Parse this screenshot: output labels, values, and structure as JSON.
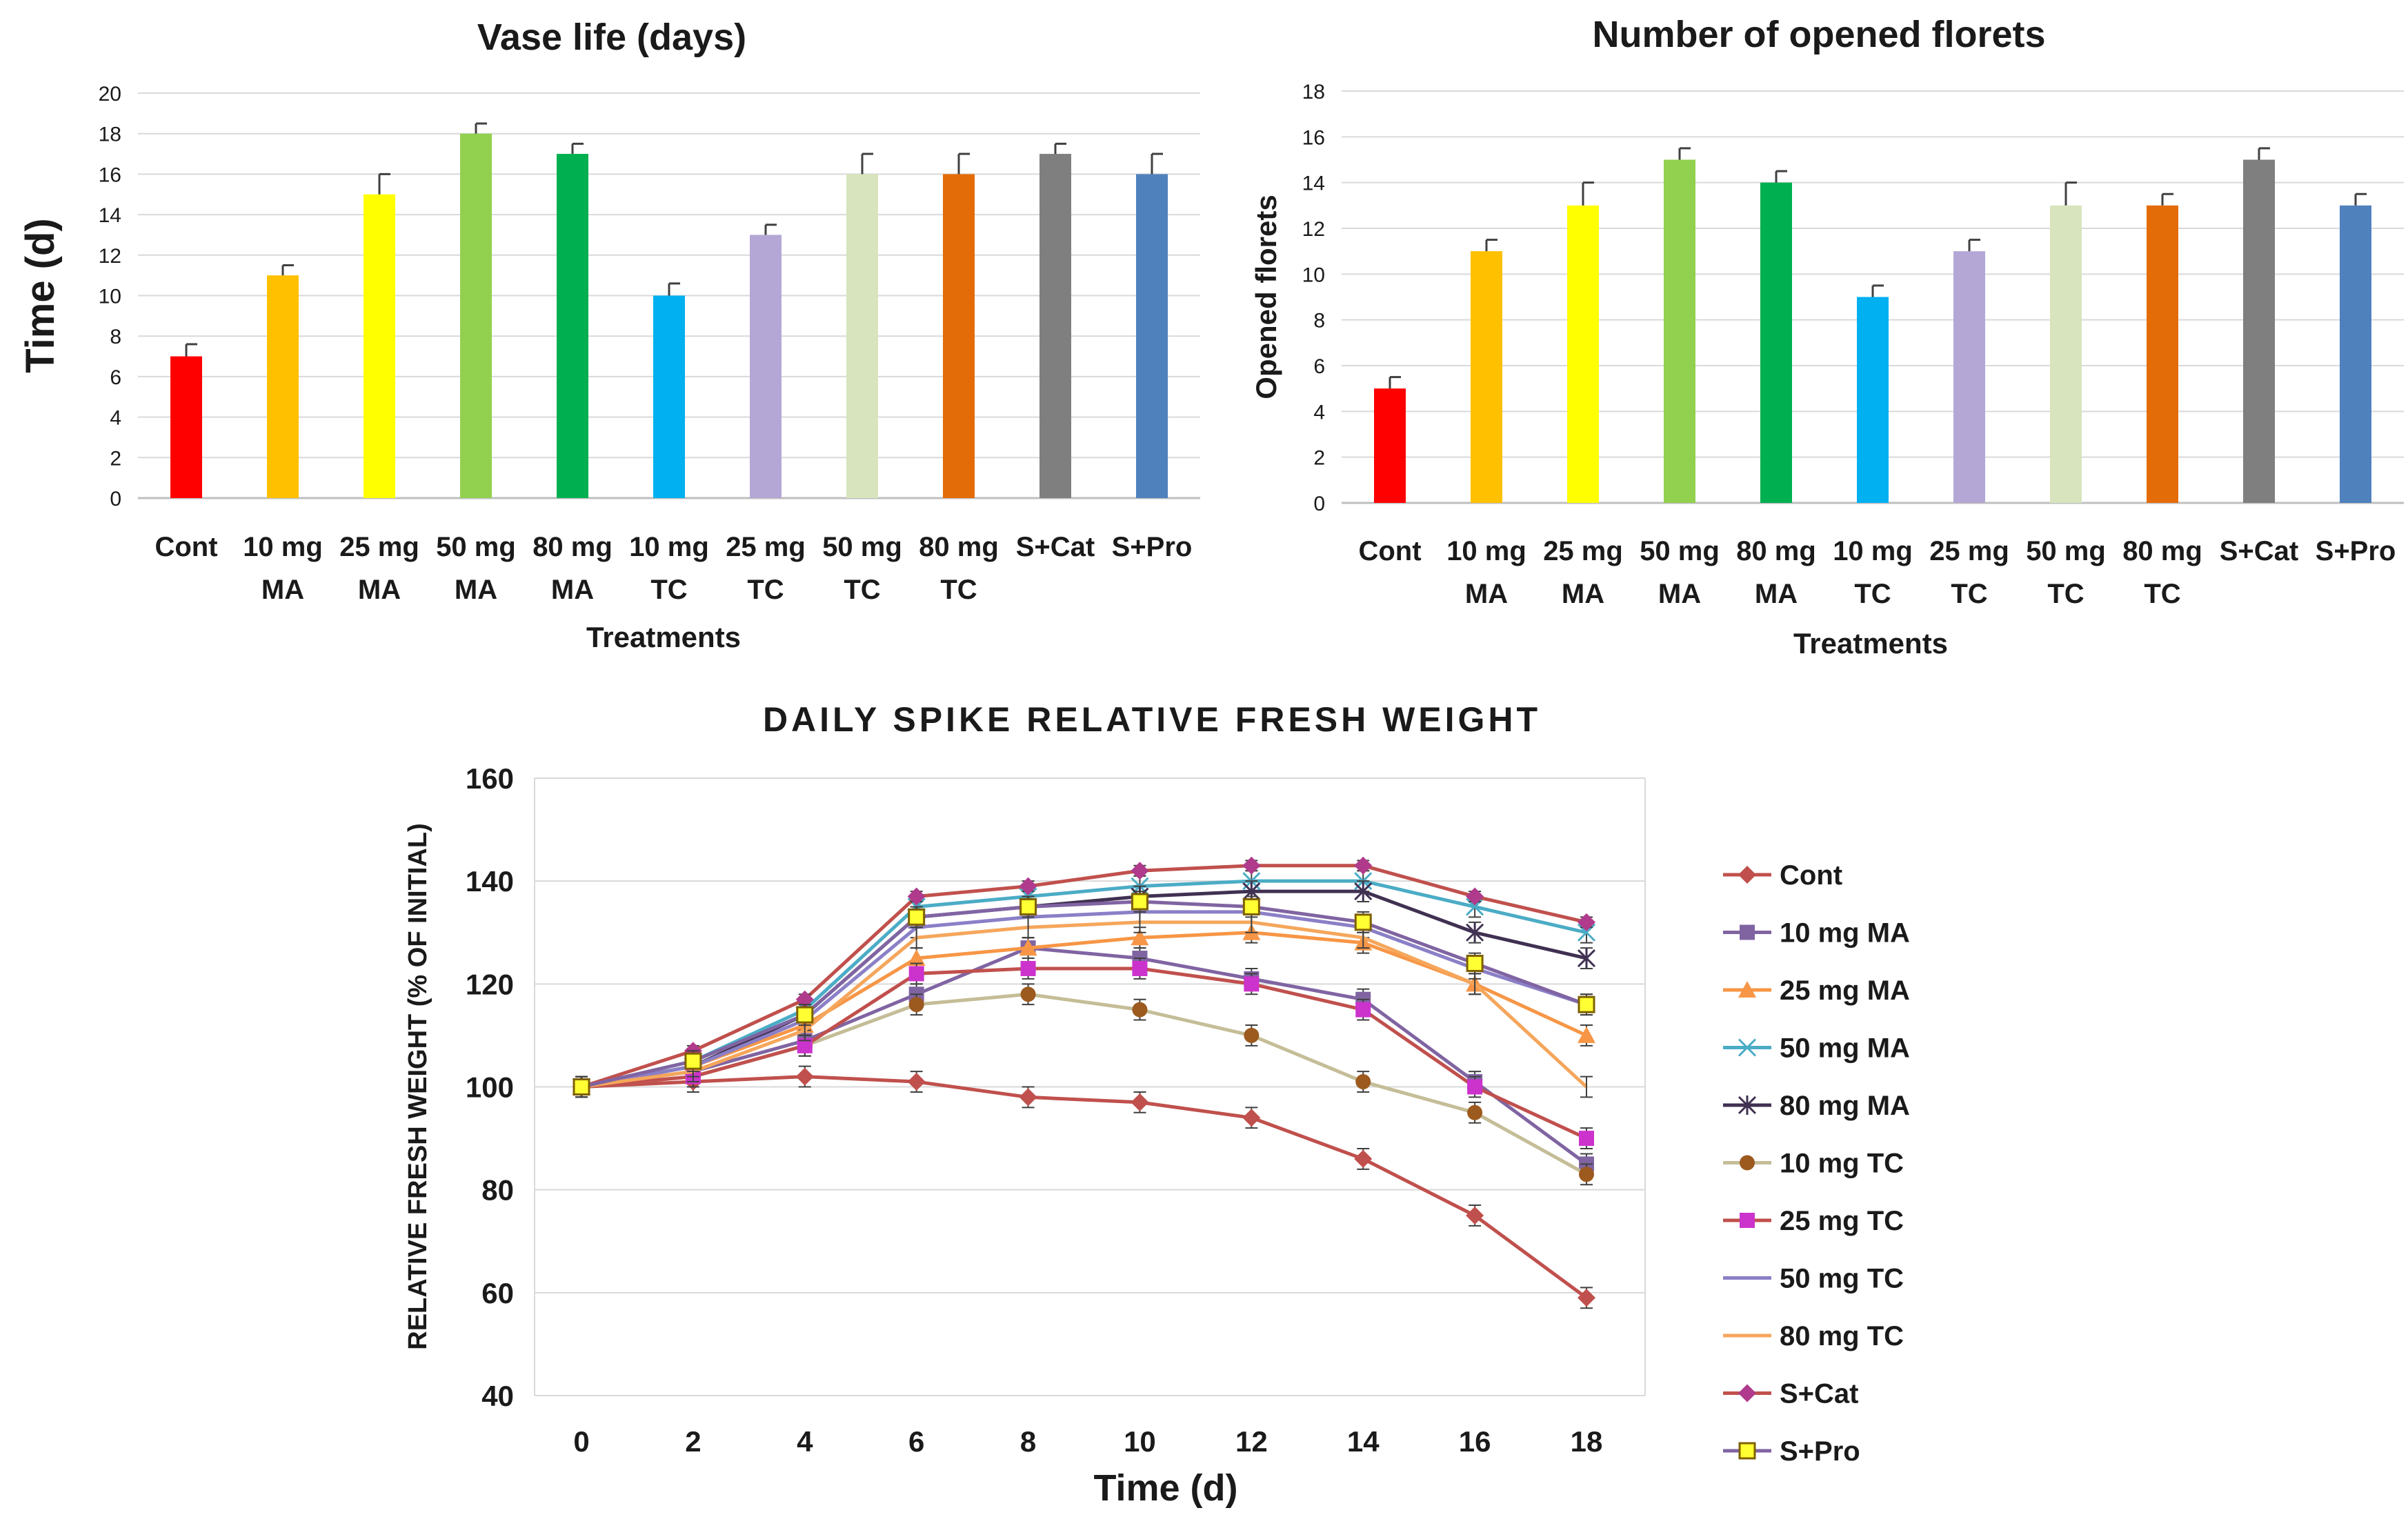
{
  "chart_data": [
    {
      "type": "bar",
      "title": "Vase life (days)",
      "xlabel": "Treatments",
      "ylabel": "Time (d)",
      "ylim": [
        0,
        20
      ],
      "yticks": [
        0,
        2,
        4,
        6,
        8,
        10,
        12,
        14,
        16,
        18,
        20
      ],
      "grid": true,
      "categories": [
        [
          "Cont"
        ],
        [
          "10 mg",
          "MA"
        ],
        [
          "25 mg",
          "MA"
        ],
        [
          "50 mg",
          "MA"
        ],
        [
          "80 mg",
          "MA"
        ],
        [
          "10 mg",
          "TC"
        ],
        [
          "25 mg",
          "TC"
        ],
        [
          "50 mg",
          "TC"
        ],
        [
          "80 mg",
          "TC"
        ],
        [
          "S+Cat"
        ],
        [
          "S+Pro"
        ]
      ],
      "values": [
        7,
        11,
        15,
        18,
        17,
        10,
        13,
        16,
        16,
        17,
        16
      ],
      "errors": [
        0.6,
        0.5,
        1.0,
        0.5,
        0.5,
        0.6,
        0.5,
        1.0,
        1.0,
        0.5,
        1.0
      ],
      "colors": [
        "#ff0000",
        "#ffc000",
        "#ffff00",
        "#92d050",
        "#00b050",
        "#00b0f0",
        "#b4a7d6",
        "#d7e4bd",
        "#e36c09",
        "#7f7f7f",
        "#4f81bd"
      ]
    },
    {
      "type": "bar",
      "title": "Number of opened florets",
      "xlabel": "Treatments",
      "ylabel": "Opened florets",
      "ylim": [
        0,
        18
      ],
      "yticks": [
        0,
        2,
        4,
        6,
        8,
        10,
        12,
        14,
        16,
        18
      ],
      "grid": true,
      "categories": [
        [
          "Cont"
        ],
        [
          "10 mg",
          "MA"
        ],
        [
          "25 mg",
          "MA"
        ],
        [
          "50 mg",
          "MA"
        ],
        [
          "80 mg",
          "MA"
        ],
        [
          "10 mg",
          "TC"
        ],
        [
          "25 mg",
          "TC"
        ],
        [
          "50 mg",
          "TC"
        ],
        [
          "80 mg",
          "TC"
        ],
        [
          "S+Cat"
        ],
        [
          "S+Pro"
        ]
      ],
      "values": [
        5,
        11,
        13,
        15,
        14,
        9,
        11,
        13,
        13,
        15,
        13
      ],
      "errors": [
        0.5,
        0.5,
        1.0,
        0.5,
        0.5,
        0.5,
        0.5,
        1.0,
        0.5,
        0.5,
        0.5
      ],
      "colors": [
        "#ff0000",
        "#ffc000",
        "#ffff00",
        "#92d050",
        "#00b050",
        "#00b0f0",
        "#b4a7d6",
        "#d7e4bd",
        "#e36c09",
        "#7f7f7f",
        "#4f81bd"
      ]
    },
    {
      "type": "line",
      "title": "DAILY SPIKE RELATIVE FRESH WEIGHT",
      "xlabel": "Time (d)",
      "ylabel": "RELATIVE FRESH WEIGHT (% OF INITIAL)",
      "ylim": [
        40,
        160
      ],
      "yticks": [
        40,
        60,
        80,
        100,
        120,
        140,
        160
      ],
      "x": [
        0,
        2,
        4,
        6,
        8,
        10,
        12,
        14,
        16,
        18
      ],
      "grid": true,
      "legend_position": "right",
      "series": [
        {
          "name": "Cont",
          "color": "#c0504d",
          "marker": "diamond",
          "values": [
            100,
            101,
            102,
            101,
            98,
            97,
            94,
            86,
            75,
            59
          ],
          "error": 2
        },
        {
          "name": "10 mg MA",
          "color": "#8064a2",
          "marker": "square",
          "values": [
            100,
            103,
            109,
            118,
            127,
            125,
            121,
            117,
            101,
            85
          ],
          "error": 2
        },
        {
          "name": "25 mg MA",
          "color": "#f79646",
          "marker": "triangle",
          "values": [
            100,
            104,
            112,
            125,
            127,
            129,
            130,
            128,
            120,
            110
          ],
          "error": 2
        },
        {
          "name": "50 mg MA",
          "color": "#4bacc6",
          "marker": "x",
          "values": [
            100,
            105,
            115,
            135,
            137,
            139,
            140,
            140,
            135,
            130
          ],
          "error": 2
        },
        {
          "name": "80 mg MA",
          "color": "#403152",
          "marker": "star",
          "values": [
            100,
            104,
            114,
            133,
            135,
            137,
            138,
            138,
            130,
            125
          ],
          "error": 2
        },
        {
          "name": "10 mg TC",
          "color": "#9c5a1f",
          "marker": "circle",
          "values": [
            100,
            102,
            108,
            116,
            118,
            115,
            110,
            101,
            95,
            83
          ],
          "error": 2,
          "line_color": "#c4bd97"
        },
        {
          "name": "25 mg TC",
          "color": "#cc33cc",
          "marker": "square",
          "values": [
            100,
            102,
            108,
            122,
            123,
            123,
            120,
            115,
            100,
            90
          ],
          "error": 2,
          "line_color": "#c0504d"
        },
        {
          "name": "50 mg TC",
          "color": "#8b7fc7",
          "marker": "dash",
          "values": [
            100,
            104,
            113,
            131,
            133,
            134,
            134,
            131,
            123,
            116
          ],
          "error": 2
        },
        {
          "name": "80 mg TC",
          "color": "#f5a65b",
          "marker": "none",
          "values": [
            100,
            103,
            111,
            129,
            131,
            132,
            132,
            129,
            120,
            100
          ],
          "error": 2
        },
        {
          "name": "S+Cat",
          "color": "#b03a8c",
          "marker": "diamond",
          "values": [
            100,
            107,
            117,
            137,
            139,
            142,
            143,
            143,
            137,
            132
          ],
          "error": 1,
          "line_color": "#c0504d"
        },
        {
          "name": "S+Pro",
          "color": "#ffff33",
          "marker": "square-outline",
          "values": [
            100,
            105,
            114,
            133,
            135,
            136,
            135,
            132,
            124,
            116
          ],
          "error": 2,
          "line_color": "#8064a2",
          "marker_stroke": "#7f6000"
        }
      ]
    }
  ]
}
